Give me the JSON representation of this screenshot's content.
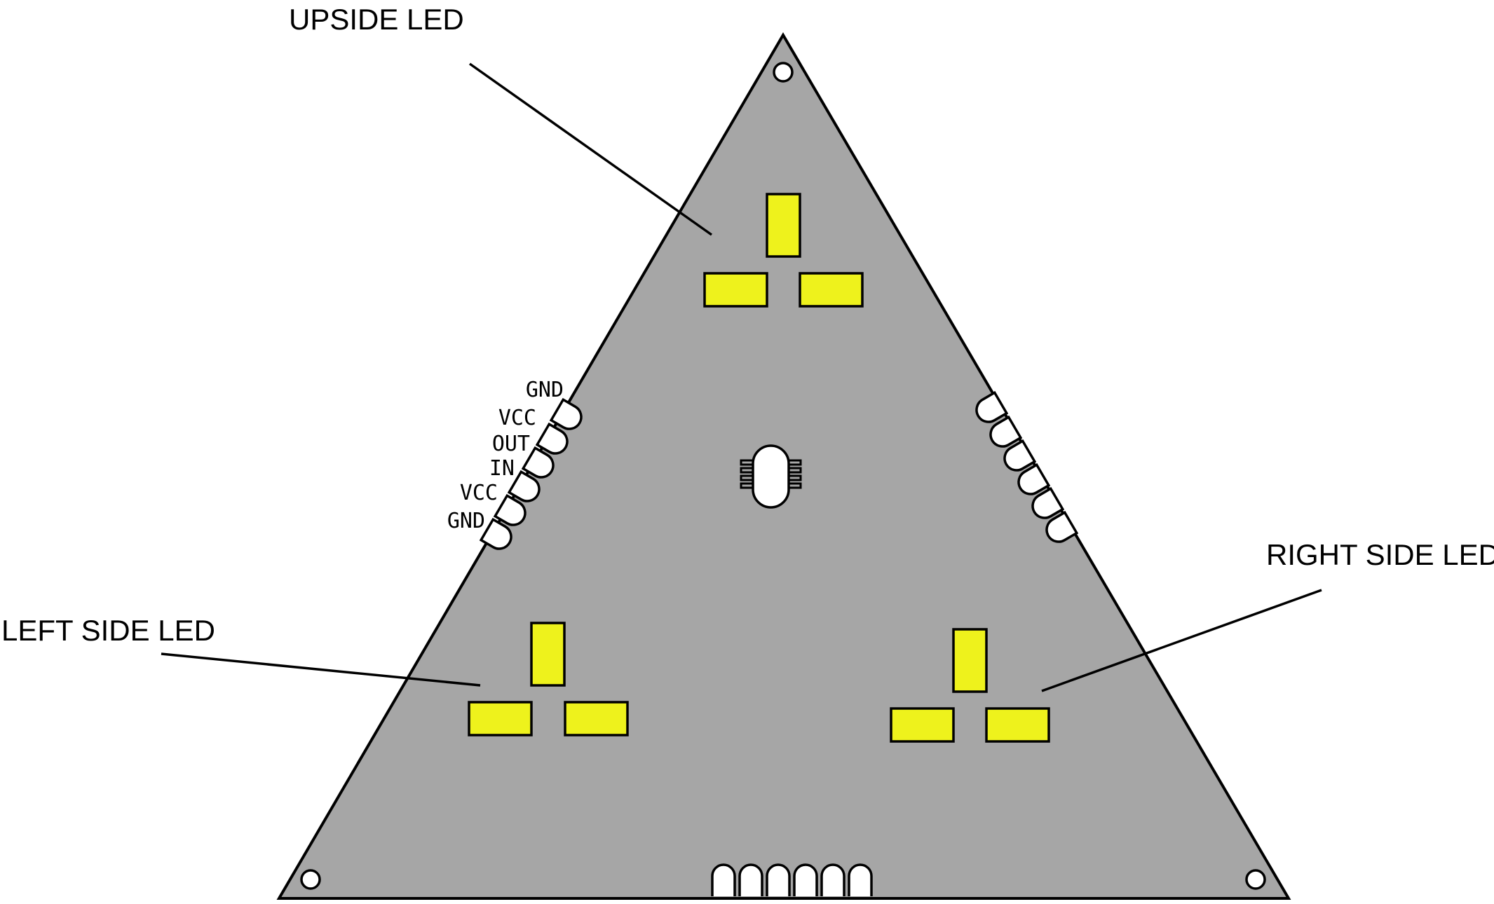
{
  "labels": {
    "upside": "UPSIDE LED",
    "left": "LEFT SIDE LED",
    "right": "RIGHT SIDE LED"
  },
  "pins": [
    "GND",
    "VCC",
    "OUT",
    "IN",
    "VCC",
    "GND"
  ],
  "colors": {
    "board": "#a6a6a6",
    "led": "#eef21c",
    "outline": "#000000",
    "pad": "#ffffff"
  }
}
